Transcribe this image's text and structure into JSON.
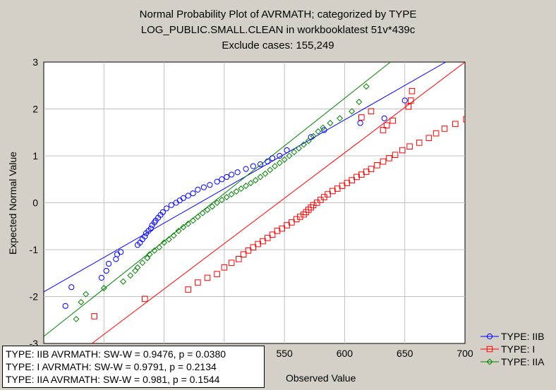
{
  "chart_data": {
    "type": "scatter",
    "title": [
      "Normal Probability Plot of AVRMATH; categorized by TYPE",
      "LOG_PUBLIC.SMALL.CLEAN in workbooklatest 51v*439c",
      "Exclude cases: 155,249"
    ],
    "xlabel": "Observed Value",
    "ylabel": "Expected Normal Value",
    "xlim": [
      350,
      700
    ],
    "ylim": [
      -3,
      3
    ],
    "xticks": [
      350,
      400,
      450,
      500,
      550,
      600,
      650,
      700
    ],
    "yticks": [
      -3,
      -2,
      -1,
      0,
      1,
      2,
      3
    ],
    "grid": true,
    "legend": "right",
    "series": [
      {
        "name": "TYPE: IIB",
        "color": "#0000ff",
        "marker": "circle",
        "fit": [
          [
            350,
            -1.9
          ],
          [
            684,
            3.0
          ]
        ],
        "points": [
          [
            368,
            -2.2
          ],
          [
            373,
            -1.8
          ],
          [
            398,
            -1.6
          ],
          [
            402,
            -1.45
          ],
          [
            404,
            -1.3
          ],
          [
            410,
            -1.2
          ],
          [
            411,
            -1.1
          ],
          [
            414,
            -1.05
          ],
          [
            428,
            -0.9
          ],
          [
            430,
            -0.85
          ],
          [
            432,
            -0.78
          ],
          [
            434,
            -0.72
          ],
          [
            435,
            -0.65
          ],
          [
            437,
            -0.6
          ],
          [
            439,
            -0.55
          ],
          [
            440,
            -0.48
          ],
          [
            442,
            -0.42
          ],
          [
            443,
            -0.38
          ],
          [
            445,
            -0.32
          ],
          [
            447,
            -0.26
          ],
          [
            449,
            -0.2
          ],
          [
            452,
            -0.12
          ],
          [
            456,
            -0.05
          ],
          [
            460,
            0.0
          ],
          [
            463,
            0.05
          ],
          [
            466,
            0.1
          ],
          [
            470,
            0.15
          ],
          [
            474,
            0.2
          ],
          [
            478,
            0.28
          ],
          [
            483,
            0.33
          ],
          [
            488,
            0.38
          ],
          [
            494,
            0.45
          ],
          [
            498,
            0.5
          ],
          [
            502,
            0.55
          ],
          [
            506,
            0.6
          ],
          [
            511,
            0.65
          ],
          [
            518,
            0.72
          ],
          [
            524,
            0.78
          ],
          [
            530,
            0.82
          ],
          [
            536,
            0.88
          ],
          [
            540,
            0.95
          ],
          [
            546,
            1.0
          ],
          [
            552,
            1.12
          ],
          [
            572,
            1.4
          ],
          [
            583,
            1.55
          ],
          [
            613,
            1.7
          ],
          [
            633,
            1.8
          ],
          [
            650,
            2.18
          ]
        ]
      },
      {
        "name": "TYPE: I",
        "color": "#ff0000",
        "marker": "square",
        "fit": [
          [
            390,
            -3.0
          ],
          [
            700,
            3.0
          ]
        ],
        "points": [
          [
            392,
            -2.42
          ],
          [
            434,
            -2.05
          ],
          [
            470,
            -1.85
          ],
          [
            478,
            -1.7
          ],
          [
            486,
            -1.6
          ],
          [
            494,
            -1.52
          ],
          [
            500,
            -1.38
          ],
          [
            506,
            -1.28
          ],
          [
            512,
            -1.2
          ],
          [
            516,
            -1.1
          ],
          [
            520,
            -1.02
          ],
          [
            524,
            -0.95
          ],
          [
            528,
            -0.88
          ],
          [
            532,
            -0.82
          ],
          [
            536,
            -0.75
          ],
          [
            540,
            -0.68
          ],
          [
            544,
            -0.6
          ],
          [
            548,
            -0.55
          ],
          [
            552,
            -0.48
          ],
          [
            556,
            -0.42
          ],
          [
            560,
            -0.35
          ],
          [
            563,
            -0.3
          ],
          [
            566,
            -0.25
          ],
          [
            568,
            -0.2
          ],
          [
            570,
            -0.15
          ],
          [
            572,
            -0.1
          ],
          [
            574,
            -0.05
          ],
          [
            577,
            0.0
          ],
          [
            580,
            0.06
          ],
          [
            583,
            0.12
          ],
          [
            586,
            0.18
          ],
          [
            590,
            0.25
          ],
          [
            594,
            0.3
          ],
          [
            598,
            0.36
          ],
          [
            602,
            0.42
          ],
          [
            606,
            0.48
          ],
          [
            610,
            0.55
          ],
          [
            614,
            0.6
          ],
          [
            618,
            0.66
          ],
          [
            622,
            0.72
          ],
          [
            627,
            0.8
          ],
          [
            632,
            0.88
          ],
          [
            637,
            0.95
          ],
          [
            642,
            1.02
          ],
          [
            648,
            1.12
          ],
          [
            654,
            1.2
          ],
          [
            662,
            1.28
          ],
          [
            670,
            1.38
          ],
          [
            676,
            1.48
          ],
          [
            683,
            1.58
          ],
          [
            692,
            1.68
          ],
          [
            701,
            1.78
          ],
          [
            614,
            1.82
          ],
          [
            622,
            1.95
          ],
          [
            632,
            1.55
          ],
          [
            635,
            1.65
          ],
          [
            640,
            1.75
          ],
          [
            653,
            2.05
          ],
          [
            655,
            2.18
          ],
          [
            656,
            2.38
          ]
        ]
      },
      {
        "name": "TYPE: IIA",
        "color": "#008000",
        "marker": "diamond",
        "fit": [
          [
            350,
            -2.85
          ],
          [
            638,
            3.0
          ]
        ],
        "points": [
          [
            377,
            -2.48
          ],
          [
            381,
            -2.12
          ],
          [
            385,
            -1.95
          ],
          [
            400,
            -1.82
          ],
          [
            416,
            -1.68
          ],
          [
            422,
            -1.55
          ],
          [
            426,
            -1.45
          ],
          [
            428,
            -1.38
          ],
          [
            432,
            -1.28
          ],
          [
            436,
            -1.18
          ],
          [
            438,
            -1.1
          ],
          [
            442,
            -1.02
          ],
          [
            446,
            -0.95
          ],
          [
            450,
            -0.85
          ],
          [
            454,
            -0.78
          ],
          [
            458,
            -0.7
          ],
          [
            462,
            -0.6
          ],
          [
            466,
            -0.52
          ],
          [
            470,
            -0.45
          ],
          [
            474,
            -0.38
          ],
          [
            478,
            -0.3
          ],
          [
            482,
            -0.22
          ],
          [
            486,
            -0.15
          ],
          [
            490,
            -0.08
          ],
          [
            494,
            0.0
          ],
          [
            498,
            0.06
          ],
          [
            502,
            0.12
          ],
          [
            506,
            0.18
          ],
          [
            510,
            0.24
          ],
          [
            514,
            0.3
          ],
          [
            518,
            0.36
          ],
          [
            522,
            0.42
          ],
          [
            526,
            0.48
          ],
          [
            530,
            0.55
          ],
          [
            534,
            0.62
          ],
          [
            538,
            0.7
          ],
          [
            542,
            0.78
          ],
          [
            546,
            0.85
          ],
          [
            550,
            0.92
          ],
          [
            554,
            1.0
          ],
          [
            558,
            1.08
          ],
          [
            562,
            1.16
          ],
          [
            566,
            1.24
          ],
          [
            570,
            1.32
          ],
          [
            574,
            1.42
          ],
          [
            578,
            1.52
          ],
          [
            582,
            1.6
          ],
          [
            588,
            1.7
          ],
          [
            596,
            1.8
          ],
          [
            606,
            1.95
          ],
          [
            612,
            2.15
          ],
          [
            618,
            2.48
          ]
        ]
      }
    ]
  },
  "stats": [
    "TYPE: IIB  AVRMATH:  SW-W = 0.9476, p = 0.0380",
    "TYPE: I  AVRMATH:  SW-W = 0.9791, p = 0.2134",
    "TYPE: IIA  AVRMATH:  SW-W = 0.981, p = 0.1544"
  ]
}
